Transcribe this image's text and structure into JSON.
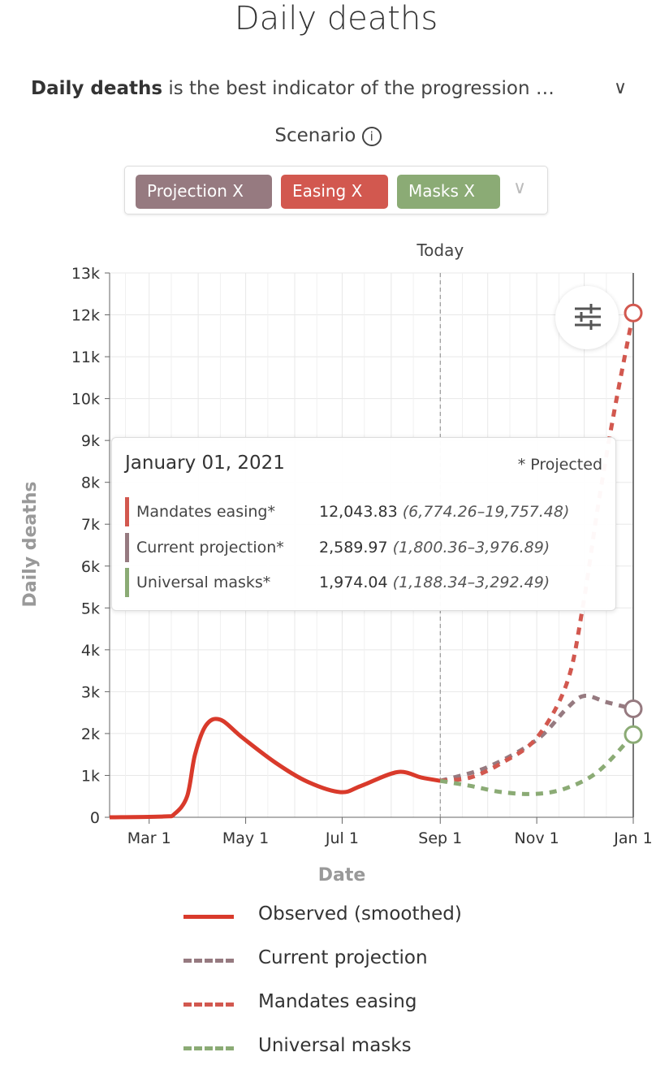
{
  "header": {
    "title": "Daily deaths",
    "desc_bold": "Daily deaths",
    "desc_rest": " is the best indicator of the progression …",
    "scenario_label": "Scenario"
  },
  "scenario_chips": [
    {
      "label": "Projection X",
      "color": "#967a80"
    },
    {
      "label": "Easing X",
      "color": "#d2584f"
    },
    {
      "label": "Masks X",
      "color": "#8bab75"
    }
  ],
  "tooltip": {
    "date": "January 01, 2021",
    "note": "* Projected",
    "rows": [
      {
        "name": "Mandates easing*",
        "value": "12,043.83",
        "range": "(6,774.26–19,757.48)",
        "color": "#d2584f"
      },
      {
        "name": "Current projection*",
        "value": "2,589.97",
        "range": "(1,800.36–3,976.89)",
        "color": "#967a80"
      },
      {
        "name": "Universal masks*",
        "value": "1,974.04",
        "range": "(1,188.34–3,292.49)",
        "color": "#8bab75"
      }
    ]
  },
  "chart_data": {
    "type": "line",
    "xlabel": "Date",
    "ylabel": "Daily deaths",
    "today_label": "Today",
    "today": "2020-09-01",
    "xlim": [
      "2020-02-05",
      "2021-01-01"
    ],
    "ylim": [
      0,
      13000
    ],
    "grid": true,
    "x_ticks": [
      {
        "label": "Mar 1",
        "date": "2020-03-01"
      },
      {
        "label": "May 1",
        "date": "2020-05-01"
      },
      {
        "label": "Jul 1",
        "date": "2020-07-01"
      },
      {
        "label": "Sep 1",
        "date": "2020-09-01"
      },
      {
        "label": "Nov 1",
        "date": "2020-11-01"
      },
      {
        "label": "Jan 1",
        "date": "2021-01-01"
      }
    ],
    "y_ticks": [
      "0",
      "1k",
      "2k",
      "3k",
      "4k",
      "5k",
      "6k",
      "7k",
      "8k",
      "9k",
      "10k",
      "11k",
      "12k",
      "13k"
    ],
    "series": [
      {
        "name": "Observed (smoothed)",
        "color": "#d93a2b",
        "dash": false,
        "points": [
          [
            "2020-02-05",
            0
          ],
          [
            "2020-03-10",
            20
          ],
          [
            "2020-03-17",
            80
          ],
          [
            "2020-03-25",
            500
          ],
          [
            "2020-03-30",
            1500
          ],
          [
            "2020-04-06",
            2200
          ],
          [
            "2020-04-15",
            2330
          ],
          [
            "2020-04-29",
            1900
          ],
          [
            "2020-05-20",
            1300
          ],
          [
            "2020-06-09",
            850
          ],
          [
            "2020-06-30",
            600
          ],
          [
            "2020-07-13",
            750
          ],
          [
            "2020-08-05",
            1080
          ],
          [
            "2020-08-20",
            950
          ],
          [
            "2020-09-01",
            870
          ]
        ]
      },
      {
        "name": "Current projection",
        "color": "#967a80",
        "dash": true,
        "points": [
          [
            "2020-09-01",
            870
          ],
          [
            "2020-10-01",
            1200
          ],
          [
            "2020-11-01",
            1850
          ],
          [
            "2020-11-20",
            2600
          ],
          [
            "2020-12-01",
            2900
          ],
          [
            "2020-12-15",
            2750
          ],
          [
            "2021-01-01",
            2590
          ]
        ]
      },
      {
        "name": "Mandates easing",
        "color": "#d2584f",
        "dash": true,
        "points": [
          [
            "2020-09-01",
            870
          ],
          [
            "2020-09-20",
            950
          ],
          [
            "2020-10-10",
            1300
          ],
          [
            "2020-11-01",
            1900
          ],
          [
            "2020-11-20",
            3200
          ],
          [
            "2020-11-30",
            5000
          ],
          [
            "2020-12-10",
            7500
          ],
          [
            "2020-12-20",
            9700
          ],
          [
            "2021-01-01",
            12044
          ]
        ]
      },
      {
        "name": "Universal masks",
        "color": "#8bab75",
        "dash": true,
        "points": [
          [
            "2020-09-01",
            870
          ],
          [
            "2020-09-20",
            750
          ],
          [
            "2020-10-10",
            600
          ],
          [
            "2020-11-01",
            560
          ],
          [
            "2020-11-20",
            700
          ],
          [
            "2020-12-10",
            1100
          ],
          [
            "2021-01-01",
            1974
          ]
        ]
      }
    ]
  }
}
